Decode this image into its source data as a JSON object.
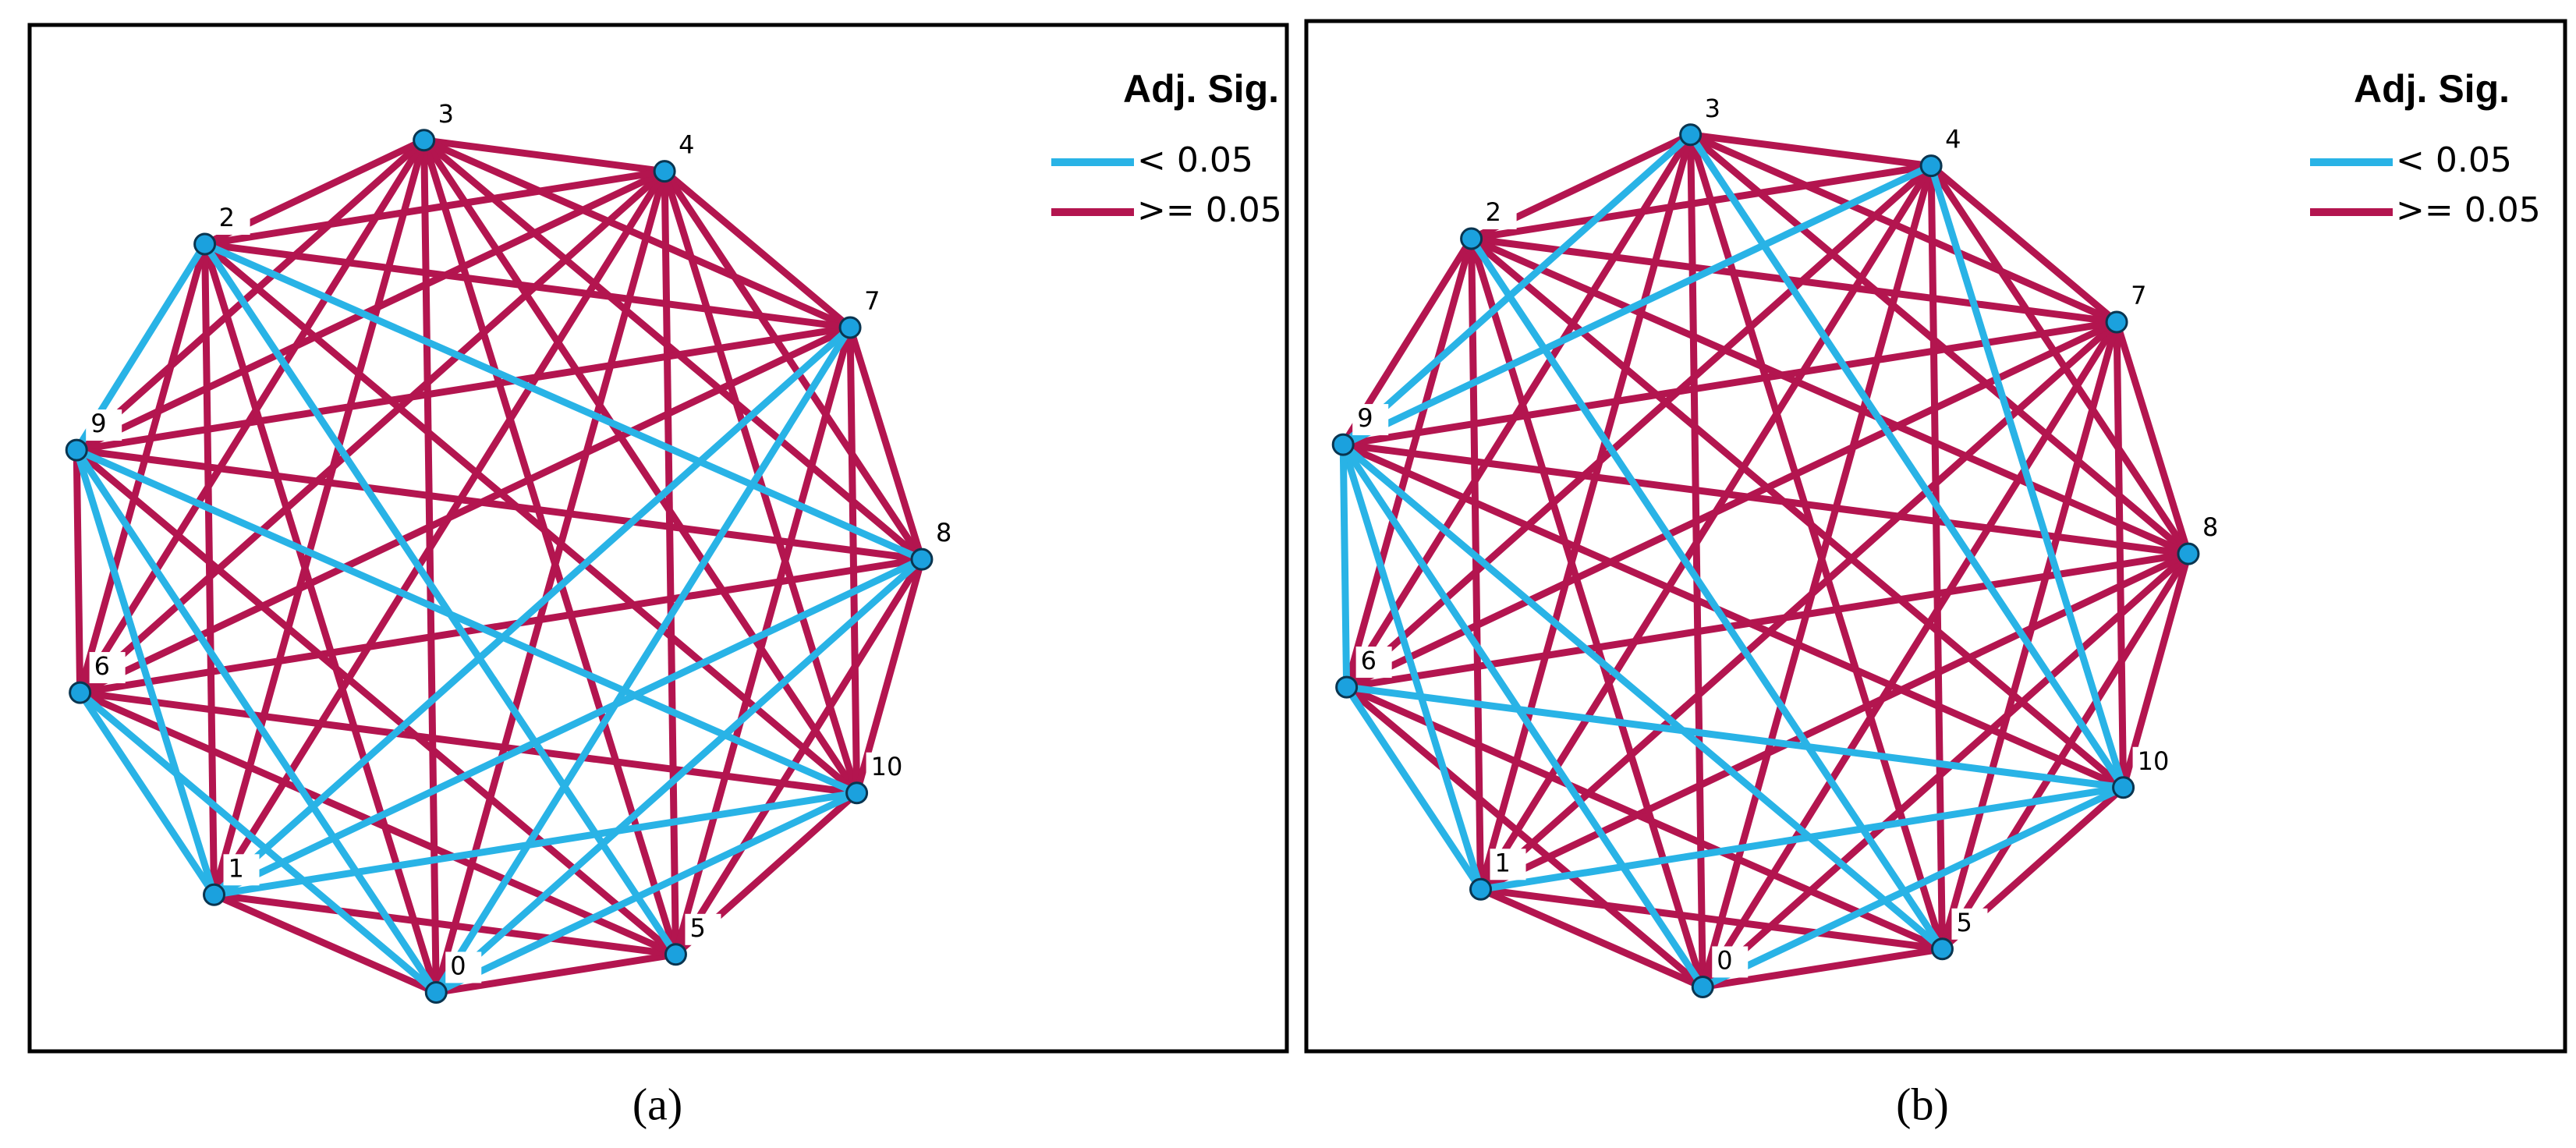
{
  "panels": [
    {
      "caption": "(a)",
      "legend": {
        "title": "Adj. Sig.",
        "items": [
          {
            "label": "< 0.05",
            "color": "#29b3e6"
          },
          {
            "label": ">= 0.05",
            "color": "#b3154f"
          }
        ]
      },
      "nodes": [
        "3",
        "4",
        "7",
        "8",
        "10",
        "5",
        "0",
        "1",
        "6",
        "9",
        "2"
      ],
      "significant_edges": [
        [
          10,
          9
        ],
        [
          10,
          3
        ],
        [
          10,
          5
        ],
        [
          9,
          7
        ],
        [
          9,
          6
        ],
        [
          9,
          4
        ],
        [
          8,
          7
        ],
        [
          8,
          6
        ],
        [
          2,
          7
        ],
        [
          2,
          6
        ],
        [
          3,
          7
        ],
        [
          3,
          6
        ],
        [
          4,
          7
        ],
        [
          4,
          6
        ]
      ]
    },
    {
      "caption": "(b)",
      "legend": {
        "title": "Adj. Sig.",
        "items": [
          {
            "label": "< 0.05",
            "color": "#29b3e6"
          },
          {
            "label": ">= 0.05",
            "color": "#b3154f"
          }
        ]
      },
      "nodes": [
        "3",
        "4",
        "7",
        "8",
        "10",
        "5",
        "0",
        "1",
        "6",
        "9",
        "2"
      ],
      "significant_edges": [
        [
          0,
          9
        ],
        [
          1,
          9
        ],
        [
          0,
          4
        ],
        [
          1,
          4
        ],
        [
          10,
          5
        ],
        [
          9,
          8
        ],
        [
          9,
          7
        ],
        [
          9,
          5
        ],
        [
          8,
          4
        ],
        [
          8,
          7
        ],
        [
          7,
          4
        ],
        [
          6,
          4
        ],
        [
          9,
          6
        ]
      ]
    }
  ]
}
